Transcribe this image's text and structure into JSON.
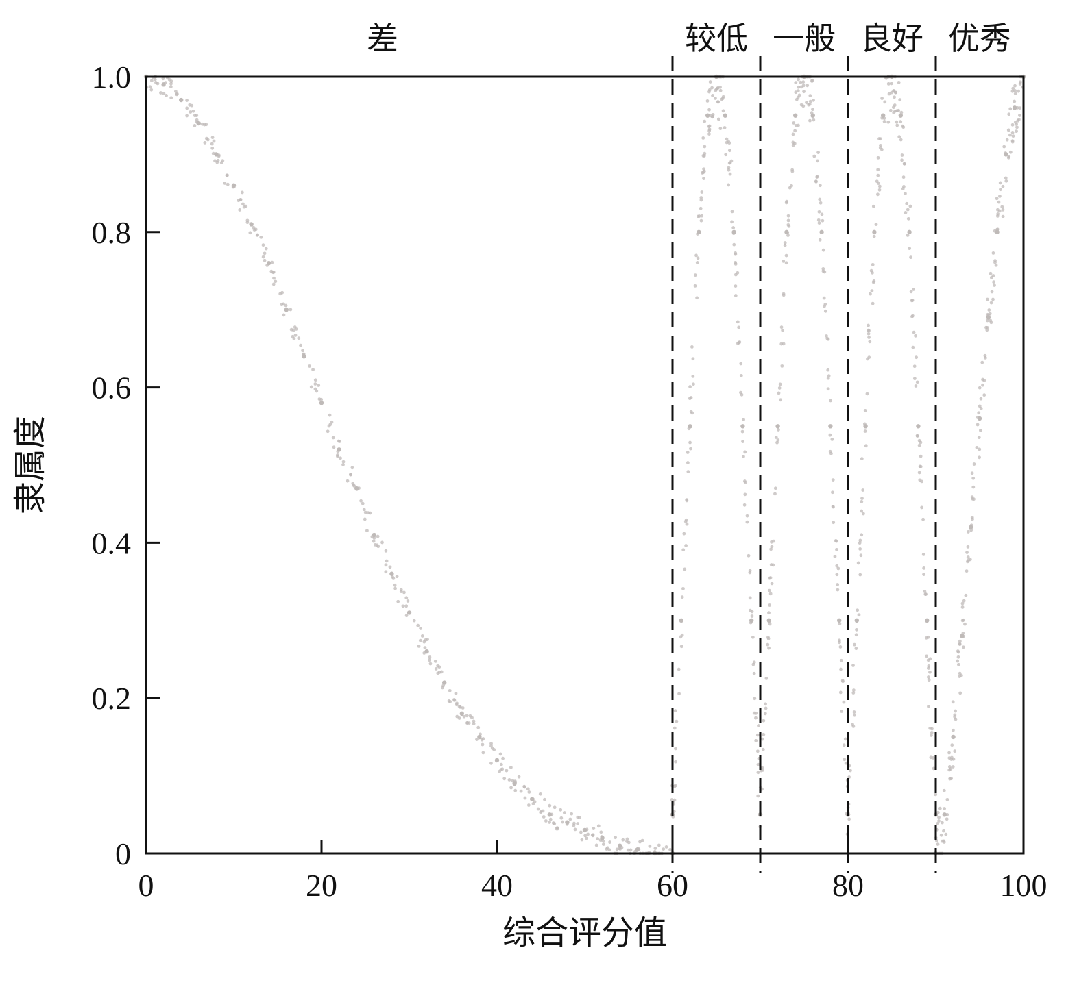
{
  "chart_data": {
    "type": "scatter",
    "title": "",
    "xlabel": "综合评分值",
    "ylabel": "隶属度",
    "xlim": [
      0,
      100
    ],
    "ylim": [
      0,
      1
    ],
    "x_ticks": [
      {
        "value": 0,
        "label": "0"
      },
      {
        "value": 20,
        "label": "20"
      },
      {
        "value": 40,
        "label": "40"
      },
      {
        "value": 60,
        "label": "60"
      },
      {
        "value": 80,
        "label": "80"
      },
      {
        "value": 100,
        "label": "100"
      }
    ],
    "y_ticks": [
      {
        "value": 0,
        "label": "0"
      },
      {
        "value": 0.2,
        "label": "0.2"
      },
      {
        "value": 0.4,
        "label": "0.4"
      },
      {
        "value": 0.6,
        "label": "0.6"
      },
      {
        "value": 0.8,
        "label": "0.8"
      },
      {
        "value": 1.0,
        "label": "1.0"
      }
    ],
    "grid": false,
    "point_color": "#bfbab8",
    "boundaries": [
      60,
      70,
      80,
      90
    ],
    "categories": [
      {
        "label": "差",
        "x_range": [
          0,
          60
        ]
      },
      {
        "label": "较低",
        "x_range": [
          60,
          70
        ]
      },
      {
        "label": "一般",
        "x_range": [
          70,
          80
        ]
      },
      {
        "label": "良好",
        "x_range": [
          80,
          90
        ]
      },
      {
        "label": "优秀",
        "x_range": [
          90,
          100
        ]
      }
    ],
    "series": [
      {
        "x": [
          0,
          2,
          4,
          6,
          8,
          10,
          12,
          14,
          16,
          18,
          20,
          22,
          24,
          26,
          28,
          30,
          32,
          34,
          36,
          38,
          40,
          42,
          44,
          46,
          48,
          50,
          52,
          54,
          56,
          58,
          60
        ],
        "y": [
          1.0,
          0.99,
          0.97,
          0.94,
          0.9,
          0.86,
          0.81,
          0.76,
          0.7,
          0.64,
          0.58,
          0.52,
          0.47,
          0.41,
          0.36,
          0.31,
          0.26,
          0.22,
          0.18,
          0.15,
          0.12,
          0.09,
          0.07,
          0.05,
          0.04,
          0.03,
          0.02,
          0.01,
          0.005,
          0.0,
          0.0
        ]
      },
      {
        "x": [
          60,
          61,
          62,
          63,
          64,
          65,
          66,
          67,
          68,
          69,
          70
        ],
        "y": [
          0.05,
          0.3,
          0.55,
          0.8,
          0.95,
          1.0,
          0.95,
          0.8,
          0.55,
          0.3,
          0.05
        ]
      },
      {
        "x": [
          70,
          71,
          72,
          73,
          74,
          75,
          76,
          77,
          78,
          79,
          80
        ],
        "y": [
          0.05,
          0.3,
          0.55,
          0.8,
          0.95,
          1.0,
          0.95,
          0.8,
          0.55,
          0.3,
          0.05
        ]
      },
      {
        "x": [
          80,
          81,
          82,
          83,
          84,
          85,
          86,
          87,
          88,
          89,
          90
        ],
        "y": [
          0.05,
          0.3,
          0.55,
          0.8,
          0.95,
          1.0,
          0.95,
          0.8,
          0.55,
          0.3,
          0.05
        ]
      },
      {
        "x": [
          90,
          91,
          92,
          93,
          94,
          95,
          96,
          97,
          98,
          99,
          100
        ],
        "y": [
          0.0,
          0.05,
          0.15,
          0.28,
          0.42,
          0.56,
          0.69,
          0.8,
          0.9,
          0.96,
          1.0
        ]
      }
    ]
  }
}
